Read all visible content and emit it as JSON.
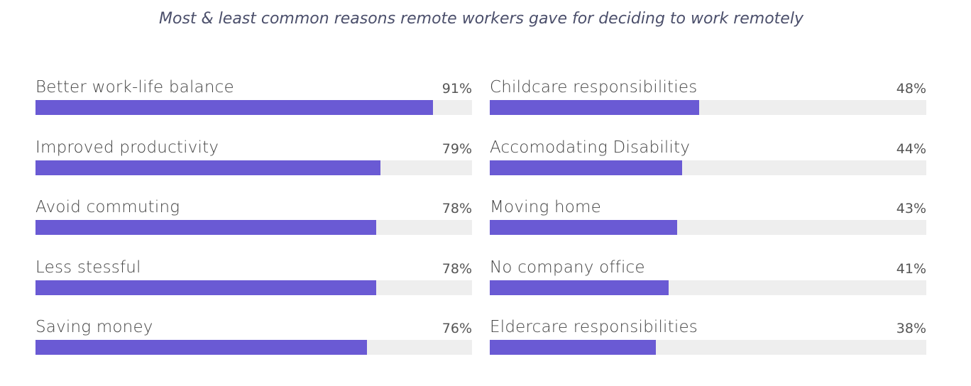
{
  "chart_data": {
    "type": "bar",
    "orientation": "horizontal",
    "title": "Most & least common reasons remote workers gave for deciding to work remotely",
    "xlim": [
      0,
      100
    ],
    "unit": "%",
    "grid": false,
    "colors": {
      "bar": "#6a5ad4",
      "track": "#eeeeee"
    },
    "groups": [
      {
        "categories": [
          "Better work-life balance",
          "Improved productivity",
          "Avoid commuting",
          "Less stessful",
          "Saving money"
        ],
        "values": [
          91,
          79,
          78,
          78,
          76
        ],
        "labels": [
          "91%",
          "79%",
          "78%",
          "78%",
          "76%"
        ]
      },
      {
        "categories": [
          "Childcare responsibilities",
          "Accomodating Disability",
          "Moving home",
          "No company office",
          "Eldercare responsibilities"
        ],
        "values": [
          48,
          44,
          43,
          41,
          38
        ],
        "labels": [
          "48%",
          "44%",
          "43%",
          "41%",
          "38%"
        ]
      }
    ]
  }
}
